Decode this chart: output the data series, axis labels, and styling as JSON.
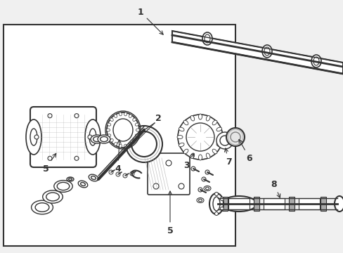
{
  "title": "",
  "background_color": "#f0f0f0",
  "box_color": "#ffffff",
  "line_color": "#333333",
  "part_labels": [
    "1",
    "2",
    "3",
    "4",
    "5",
    "5",
    "6",
    "7",
    "8"
  ],
  "figsize": [
    4.89,
    3.6
  ],
  "dpi": 100,
  "border_color": "#555555",
  "light_gray": "#cccccc",
  "dark_gray": "#888888",
  "mid_gray": "#aaaaaa"
}
